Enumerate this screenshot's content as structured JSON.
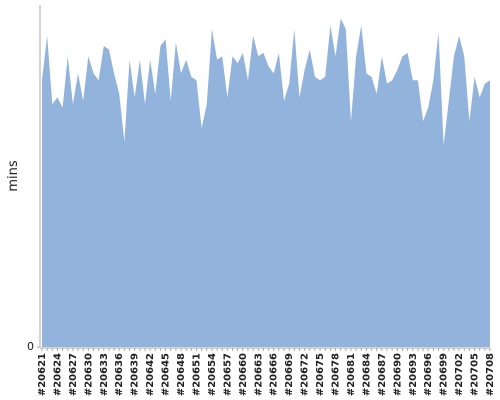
{
  "chart_data": {
    "type": "area",
    "ylabel": "mins",
    "color": "#92b3dc",
    "ylim": [
      0,
      100
    ],
    "yticks": [
      0
    ],
    "categories": [
      "#20621",
      null,
      null,
      "#20624",
      null,
      null,
      "#20627",
      null,
      null,
      "#20630",
      null,
      null,
      "#20633",
      null,
      null,
      "#20636",
      null,
      null,
      "#20639",
      null,
      null,
      "#20642",
      null,
      null,
      "#20645",
      null,
      null,
      "#20648",
      null,
      null,
      "#20651",
      null,
      null,
      "#20654",
      null,
      null,
      "#20657",
      null,
      null,
      "#20660",
      null,
      null,
      "#20663",
      null,
      null,
      "#20666",
      null,
      null,
      "#20669",
      null,
      null,
      "#20672",
      null,
      null,
      "#20675",
      null,
      null,
      "#20678",
      null,
      null,
      "#20681",
      null,
      null,
      "#20684",
      null,
      null,
      "#20687",
      null,
      null,
      "#20690",
      null,
      null,
      "#20693",
      null,
      null,
      "#20696",
      null,
      null,
      "#20699",
      null,
      null,
      "#20702",
      null,
      null,
      "#20705",
      null,
      null,
      "#20708"
    ],
    "values": [
      78,
      91,
      71,
      73,
      70,
      85,
      71,
      80,
      72,
      85,
      80,
      78,
      88,
      87,
      80,
      74,
      60,
      84,
      73,
      84,
      71,
      84,
      74,
      88,
      90,
      72,
      89,
      80,
      84,
      79,
      78,
      64,
      71,
      93,
      84,
      85,
      73,
      85,
      83,
      86,
      78,
      91,
      85,
      86,
      82,
      80,
      86,
      72,
      77,
      93,
      73,
      81,
      87,
      79,
      78,
      79,
      94,
      85,
      96,
      93,
      66,
      85,
      94,
      80,
      79,
      74,
      85,
      77,
      78,
      81,
      85,
      86,
      78,
      78,
      66,
      70,
      78,
      92,
      59,
      72,
      85,
      91,
      85,
      66,
      79,
      73,
      77,
      78
    ]
  }
}
